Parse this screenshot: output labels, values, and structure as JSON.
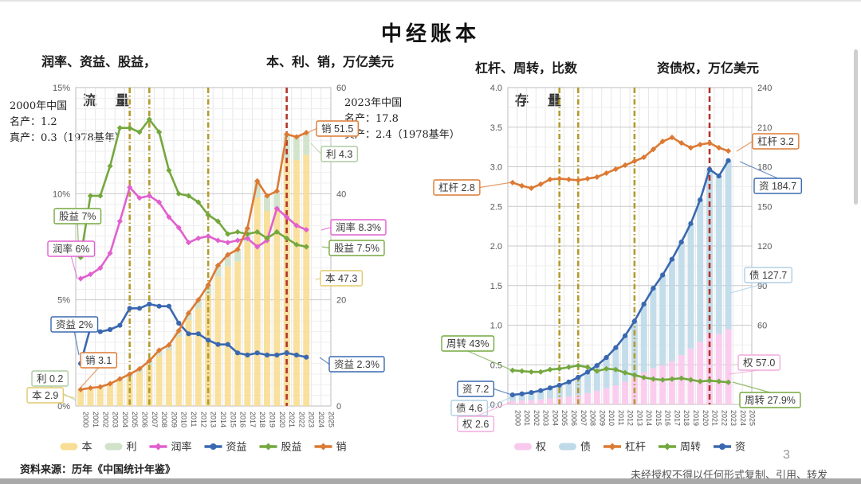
{
  "title": "中经账本",
  "page_number": "3",
  "footer": {
    "source": "资料来源：历年《中国统计年鉴》",
    "disclaimer": "未经授权不得以任何形式复制、引用、转发"
  },
  "panels": [
    {
      "id": "flow",
      "header_left": "润率、资益、股益，",
      "header_right": "本、利、销，万亿美元",
      "plot_label": "流 量",
      "note_start": "2000年中国\n名产：1.2\n真产：0.3（1978基年）",
      "note_end": "2023年中国\n名产：17.8\n真产：2.4（1978基年）"
    },
    {
      "id": "stock",
      "header_left": "杠杆、周转，比数",
      "header_right": "资债权，万亿美元",
      "plot_label": "存 量",
      "note_start": "",
      "note_end": ""
    }
  ],
  "chart_data": [
    {
      "type": "combo-bar-line",
      "name": "flow-chart",
      "title": "流量（本、利、销 与 润率、资益、股益）",
      "categories": [
        "2000",
        "2001",
        "2002",
        "2003",
        "2004",
        "2005",
        "2006",
        "2007",
        "2008",
        "2009",
        "2010",
        "2011",
        "2012",
        "2013",
        "2014",
        "2015",
        "2016",
        "2017",
        "2018",
        "2019",
        "2020",
        "2021",
        "2022",
        "2023",
        "2024",
        "2025"
      ],
      "data_through": "2023",
      "left_axis": {
        "label": "润率、资益、股益",
        "unit": "%",
        "min": 0,
        "max": 15,
        "ticks": [
          [
            0,
            "0%"
          ],
          [
            5,
            "5%"
          ],
          [
            10,
            "10%"
          ],
          [
            15,
            "15%"
          ]
        ]
      },
      "right_axis": {
        "label": "本、利、销，万亿美元",
        "min": 0,
        "max": 60,
        "ticks": [
          [
            0,
            "0"
          ],
          [
            20,
            "20"
          ],
          [
            40,
            "40"
          ],
          [
            60,
            "60"
          ]
        ]
      },
      "highlight_years": {
        "olive_dashed": [
          "2005",
          "2007",
          "2013"
        ],
        "red_dashed": [
          "2021"
        ]
      },
      "series": [
        {
          "name": "本",
          "type": "bar",
          "axis": "right",
          "color": "#F8DC8F",
          "values": [
            2.9,
            3.2,
            3.35,
            3.9,
            4.7,
            5.4,
            6.3,
            7.65,
            9.5,
            10.5,
            13.0,
            16.15,
            18.4,
            21.0,
            24.4,
            26.3,
            27.2,
            30.9,
            39.3,
            36.75,
            37.3,
            46.6,
            46.35,
            47.3
          ]
        },
        {
          "name": "利",
          "type": "bar",
          "axis": "right",
          "color": "#CDE0C5",
          "values": [
            0.2,
            0.2,
            0.25,
            0.3,
            0.4,
            0.6,
            0.7,
            0.85,
            1.0,
            1.0,
            1.2,
            1.35,
            1.6,
            1.8,
            2.1,
            2.2,
            2.3,
            2.6,
            3.1,
            2.85,
            3.2,
            4.6,
            4.35,
            4.3
          ]
        },
        {
          "name": "润率",
          "type": "line",
          "axis": "left",
          "marker": "diamond",
          "color": "#E160CE",
          "values": [
            6.0,
            6.2,
            6.5,
            7.2,
            8.7,
            10.3,
            9.8,
            9.9,
            9.6,
            8.9,
            8.4,
            7.7,
            7.9,
            8.0,
            7.8,
            7.7,
            7.8,
            7.9,
            7.5,
            7.8,
            9.3,
            8.9,
            8.5,
            8.3
          ]
        },
        {
          "name": "资益",
          "type": "line",
          "axis": "left",
          "marker": "circle",
          "color": "#3A68B0",
          "values": [
            2.0,
            3.7,
            3.5,
            3.6,
            3.8,
            4.6,
            4.6,
            4.8,
            4.7,
            4.7,
            3.9,
            3.4,
            3.4,
            3.1,
            2.9,
            2.9,
            2.5,
            2.4,
            2.5,
            2.4,
            2.4,
            2.5,
            2.4,
            2.3
          ]
        },
        {
          "name": "股益",
          "type": "line",
          "axis": "left",
          "marker": "diamond",
          "color": "#74A83E",
          "values": [
            7.0,
            9.9,
            9.9,
            11.3,
            13.1,
            13.1,
            12.9,
            13.5,
            12.9,
            11.1,
            10.0,
            9.9,
            9.6,
            9.0,
            8.7,
            8.1,
            8.2,
            8.1,
            8.2,
            7.9,
            8.2,
            7.9,
            7.6,
            7.5
          ]
        },
        {
          "name": "销",
          "type": "line",
          "axis": "right",
          "marker": "diamond",
          "color": "#DC7A33",
          "values": [
            3.1,
            3.4,
            3.6,
            4.2,
            5.1,
            6.0,
            7.0,
            8.5,
            10.5,
            11.5,
            14.2,
            17.5,
            20.0,
            22.8,
            26.5,
            28.5,
            29.5,
            33.5,
            42.4,
            39.6,
            40.5,
            51.2,
            50.7,
            51.5
          ]
        }
      ],
      "annotations": [
        {
          "id": "guyi-start",
          "text": "股益 7%",
          "color": "#74A83E"
        },
        {
          "id": "runlv-start",
          "text": "润率 6%",
          "color": "#E160CE"
        },
        {
          "id": "ziyi-start",
          "text": "资益 2%",
          "color": "#3A68B0"
        },
        {
          "id": "xiao-start",
          "text": "销 3.1",
          "color": "#DC7A33"
        },
        {
          "id": "li-start",
          "text": "利 0.2",
          "color": "#AECBA2"
        },
        {
          "id": "ben-start",
          "text": "本 2.9",
          "color": "#E2C96B"
        },
        {
          "id": "xiao-end",
          "text": "销 51.5",
          "color": "#DC7A33"
        },
        {
          "id": "li-end",
          "text": "利 4.3",
          "color": "#AECBA2"
        },
        {
          "id": "runlv-end",
          "text": "润率 8.3%",
          "color": "#E160CE"
        },
        {
          "id": "guyi-end",
          "text": "股益 7.5%",
          "color": "#74A83E"
        },
        {
          "id": "ben-end",
          "text": "本 47.3",
          "color": "#E2C96B"
        },
        {
          "id": "ziyi-end",
          "text": "资益 2.3%",
          "color": "#3A68B0"
        }
      ]
    },
    {
      "type": "combo-bar-line",
      "name": "stock-chart",
      "title": "存量（资、债、权 与 杠杆、周转）",
      "categories": [
        "2000",
        "2001",
        "2002",
        "2003",
        "2004",
        "2005",
        "2006",
        "2007",
        "2008",
        "2009",
        "2010",
        "2011",
        "2012",
        "2013",
        "2014",
        "2015",
        "2016",
        "2017",
        "2018",
        "2019",
        "2020",
        "2021",
        "2022",
        "2023",
        "2024",
        "2025"
      ],
      "data_through": "2023",
      "left_axis": {
        "label": "杠杆、周转，比数",
        "min": 0,
        "max": 4,
        "ticks": [
          [
            0,
            "0.0"
          ],
          [
            0.5,
            "0.5"
          ],
          [
            1,
            "1.0"
          ],
          [
            1.5,
            "1.5"
          ],
          [
            2,
            "2.0"
          ],
          [
            2.5,
            "2.5"
          ],
          [
            3,
            "3.0"
          ],
          [
            3.5,
            "3.5"
          ],
          [
            4,
            "4.0"
          ]
        ]
      },
      "right_axis": {
        "label": "资债权，万亿美元",
        "min": 0,
        "max": 240,
        "ticks": [
          [
            0,
            "0"
          ],
          [
            30,
            "30"
          ],
          [
            60,
            "60"
          ],
          [
            90,
            "90"
          ],
          [
            120,
            "120"
          ],
          [
            150,
            "150"
          ],
          [
            180,
            "180"
          ],
          [
            210,
            "210"
          ],
          [
            240,
            "240"
          ]
        ]
      },
      "highlight_years": {
        "olive_dashed": [
          "2005",
          "2007",
          "2013"
        ],
        "red_dashed": [
          "2021"
        ]
      },
      "series": [
        {
          "name": "权",
          "type": "bar",
          "axis": "right",
          "color": "#F9C6EC",
          "values": [
            2.6,
            2.9,
            3.3,
            3.8,
            4.4,
            5.1,
            6.0,
            7.2,
            8.6,
            10.3,
            12.2,
            14.5,
            17.2,
            20.5,
            24.4,
            27.3,
            29.5,
            32.6,
            37.3,
            42.3,
            47.3,
            53.9,
            53.4,
            57.0
          ]
        },
        {
          "name": "债",
          "type": "bar",
          "axis": "right",
          "color": "#BCD8E8",
          "values": [
            4.6,
            5.1,
            5.7,
            6.7,
            8.1,
            9.4,
            11.0,
            13.3,
            15.9,
            19.2,
            23.3,
            28.5,
            34.8,
            42.5,
            51.6,
            60.7,
            68.5,
            77.4,
            85.7,
            94.7,
            107.7,
            124.1,
            119.6,
            127.7
          ]
        },
        {
          "name": "杠杆",
          "type": "line",
          "axis": "left",
          "marker": "diamond",
          "color": "#DC7A33",
          "values": [
            2.8,
            2.76,
            2.73,
            2.78,
            2.84,
            2.85,
            2.84,
            2.83,
            2.85,
            2.87,
            2.92,
            2.97,
            3.02,
            3.07,
            3.12,
            3.22,
            3.32,
            3.37,
            3.3,
            3.24,
            3.28,
            3.3,
            3.24,
            3.2
          ]
        },
        {
          "name": "周转",
          "type": "line",
          "axis": "left",
          "marker": "diamond",
          "color": "#74A83E",
          "values": [
            0.43,
            0.42,
            0.41,
            0.41,
            0.44,
            0.45,
            0.47,
            0.49,
            0.47,
            0.42,
            0.45,
            0.44,
            0.4,
            0.37,
            0.34,
            0.32,
            0.31,
            0.32,
            0.33,
            0.31,
            0.29,
            0.3,
            0.29,
            0.279
          ]
        },
        {
          "name": "资",
          "type": "line",
          "axis": "right",
          "marker": "circle",
          "color": "#3A68B0",
          "values": [
            7.2,
            8.0,
            9.0,
            10.5,
            12.5,
            14.5,
            17.0,
            20.5,
            24.5,
            29.5,
            35.5,
            43.0,
            52.0,
            63.0,
            76.0,
            88.0,
            98.0,
            110.0,
            123.0,
            137.0,
            155.0,
            178.0,
            173.0,
            184.7
          ]
        }
      ],
      "annotations": [
        {
          "id": "gg-start",
          "text": "杠杆 2.8",
          "color": "#DC7A33"
        },
        {
          "id": "zz-start",
          "text": "周转 43%",
          "color": "#74A83E"
        },
        {
          "id": "zi-start",
          "text": "资 7.2",
          "color": "#3A68B0"
        },
        {
          "id": "zhai-start",
          "text": "债 4.6",
          "color": "#AFCFE3"
        },
        {
          "id": "quan-start",
          "text": "权 2.6",
          "color": "#F2AADE"
        },
        {
          "id": "gg-end",
          "text": "杠杆 3.2",
          "color": "#DC7A33"
        },
        {
          "id": "zi-end",
          "text": "资 184.7",
          "color": "#3A68B0"
        },
        {
          "id": "zhai-end",
          "text": "债 127.7",
          "color": "#AFCFE3"
        },
        {
          "id": "quan-end",
          "text": "权 57.0",
          "color": "#F2AADE"
        },
        {
          "id": "zz-end",
          "text": "周转 27.9%",
          "color": "#74A83E"
        }
      ]
    }
  ]
}
